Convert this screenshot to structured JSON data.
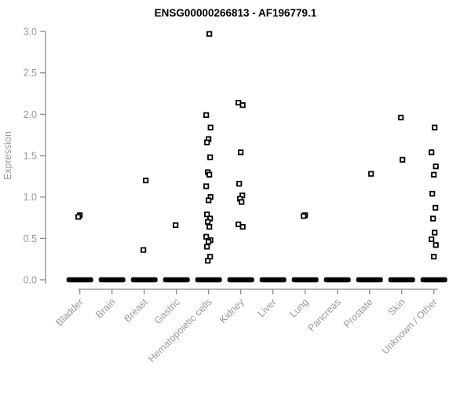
{
  "page": {
    "background": "#ffffff"
  },
  "chart_data": {
    "type": "scatter",
    "subtype": "strip-plot",
    "title": "ENSG00000266813 - AF196779.1",
    "xlabel": "",
    "ylabel": "Expression",
    "ylim": [
      0.0,
      3.0
    ],
    "yticks": [
      0.0,
      0.5,
      1.0,
      1.5,
      2.0,
      2.5,
      3.0
    ],
    "grid": false,
    "legend": "none",
    "marker": "open-square",
    "colors": {
      "point": "#000000",
      "axis_line": "#8a8a8a",
      "tick_label": "#9a9a9a",
      "title": "#000000",
      "background": "#ffffff"
    },
    "categories": [
      "Bladder",
      "Brain",
      "Breast",
      "Gastric",
      "Hematopoietic cells",
      "Kidney",
      "Liver",
      "Lung",
      "Pancreas",
      "Prostate",
      "Skin",
      "Unknown / Other"
    ],
    "series": [
      {
        "category": "Bladder",
        "nonzero_values": [
          0.78,
          0.76
        ],
        "zero_cluster": true
      },
      {
        "category": "Brain",
        "nonzero_values": [],
        "zero_cluster": true
      },
      {
        "category": "Breast",
        "nonzero_values": [
          1.2,
          0.36
        ],
        "zero_cluster": true
      },
      {
        "category": "Gastric",
        "nonzero_values": [
          0.66
        ],
        "zero_cluster": true
      },
      {
        "category": "Hematopoietic cells",
        "nonzero_values": [
          2.97,
          1.99,
          1.84,
          1.7,
          1.66,
          1.48,
          1.3,
          1.27,
          1.13,
          1.0,
          0.96,
          0.79,
          0.74,
          0.7,
          0.64,
          0.52,
          0.48,
          0.46,
          0.4,
          0.28,
          0.23
        ],
        "zero_cluster": true
      },
      {
        "category": "Kidney",
        "nonzero_values": [
          2.14,
          2.11,
          1.54,
          1.16,
          1.02,
          0.98,
          0.94,
          0.67,
          0.64
        ],
        "zero_cluster": true
      },
      {
        "category": "Liver",
        "nonzero_values": [],
        "zero_cluster": true
      },
      {
        "category": "Lung",
        "nonzero_values": [
          0.78,
          0.77
        ],
        "zero_cluster": true
      },
      {
        "category": "Pancreas",
        "nonzero_values": [],
        "zero_cluster": true
      },
      {
        "category": "Prostate",
        "nonzero_values": [
          1.28
        ],
        "zero_cluster": true
      },
      {
        "category": "Skin",
        "nonzero_values": [
          1.96,
          1.45
        ],
        "zero_cluster": true
      },
      {
        "category": "Unknown / Other",
        "nonzero_values": [
          1.84,
          1.54,
          1.37,
          1.27,
          1.04,
          0.87,
          0.74,
          0.57,
          0.49,
          0.42,
          0.28
        ],
        "zero_cluster": true
      }
    ]
  }
}
